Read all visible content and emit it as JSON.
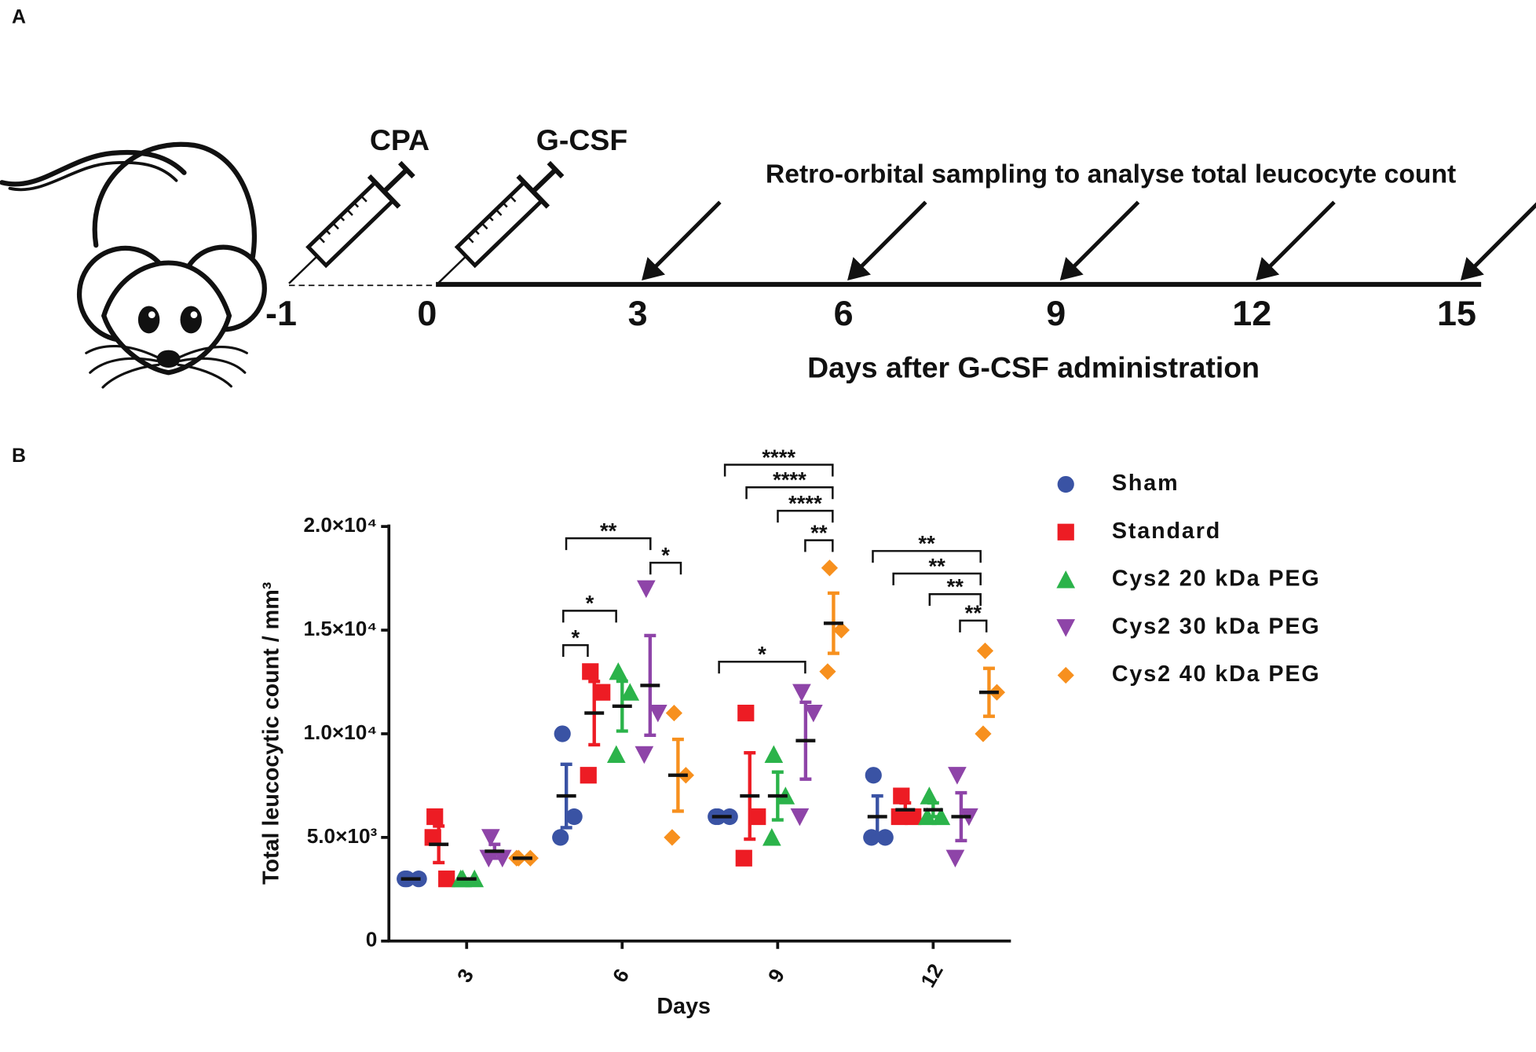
{
  "panel_a": {
    "label": "A",
    "injections": [
      "CPA",
      "G-CSF"
    ],
    "sampling_note": "Retro-orbital sampling to analyse total leucocyte count",
    "timeline": [
      "-1",
      "0",
      "3",
      "6",
      "9",
      "12",
      "15"
    ],
    "timeline_label": "Days after G-CSF administration"
  },
  "chart_data": {
    "type": "dot",
    "panel_label": "B",
    "xlabel": "Days",
    "ylabel": "Total leucocytic count / mm³",
    "categories": [
      "3",
      "6",
      "9",
      "12"
    ],
    "ylim": [
      0,
      20000
    ],
    "yticks": [
      0,
      {
        "value": 5000,
        "label": "5.0×10³"
      },
      {
        "value": 10000,
        "label": "1.0×10⁴"
      },
      {
        "value": 15000,
        "label": "1.5×10⁴"
      },
      {
        "value": 20000,
        "label": "2.0×10⁴"
      }
    ],
    "series": [
      {
        "name": "Sham",
        "color": "#3a53a4",
        "marker": "circle",
        "values": [
          [
            3000,
            3000,
            3000
          ],
          [
            10000,
            6000,
            5000
          ],
          [
            6000,
            6000,
            6000
          ],
          [
            8000,
            5000,
            5000
          ]
        ],
        "means": [
          3000,
          7000,
          6000,
          6000
        ],
        "errors": [
          0,
          1528,
          0,
          1000
        ]
      },
      {
        "name": "Standard",
        "color": "#ed1c24",
        "marker": "square",
        "values": [
          [
            6000,
            3000,
            5000
          ],
          [
            13000,
            12000,
            8000
          ],
          [
            11000,
            6000,
            4000
          ],
          [
            7000,
            6000,
            6000
          ]
        ],
        "means": [
          4667,
          11000,
          7000,
          6333
        ],
        "errors": [
          882,
          1528,
          2082,
          333
        ]
      },
      {
        "name": "Cys2 20 kDa PEG",
        "color": "#2bb34a",
        "marker": "triangle",
        "values": [
          [
            3000,
            3000,
            3000
          ],
          [
            13000,
            12000,
            9000
          ],
          [
            9000,
            7000,
            5000
          ],
          [
            7000,
            6000,
            6000
          ]
        ],
        "means": [
          3000,
          11333,
          7000,
          6333
        ],
        "errors": [
          0,
          1202,
          1155,
          333
        ]
      },
      {
        "name": "Cys2 30 kDa PEG",
        "color": "#8e44a8",
        "marker": "triangle-down",
        "values": [
          [
            5000,
            4000,
            4000
          ],
          [
            17000,
            11000,
            9000
          ],
          [
            12000,
            11000,
            6000
          ],
          [
            8000,
            6000,
            4000
          ]
        ],
        "means": [
          4333,
          12333,
          9667,
          6000
        ],
        "errors": [
          333,
          2404,
          1856,
          1155
        ]
      },
      {
        "name": "Cys2 40 kDa PEG",
        "color": "#f7901e",
        "marker": "diamond",
        "values": [
          [
            4000,
            4000,
            4000
          ],
          [
            11000,
            8000,
            5000
          ],
          [
            18000,
            15000,
            13000
          ],
          [
            14000,
            12000,
            10000
          ]
        ],
        "means": [
          4000,
          8000,
          15333,
          12000
        ],
        "errors": [
          0,
          1732,
          1453,
          1155
        ]
      }
    ],
    "significance": [
      "*",
      "*",
      "**",
      "*",
      "*",
      "****",
      "****",
      "****",
      "**",
      "**",
      "**",
      "**",
      "**"
    ]
  }
}
